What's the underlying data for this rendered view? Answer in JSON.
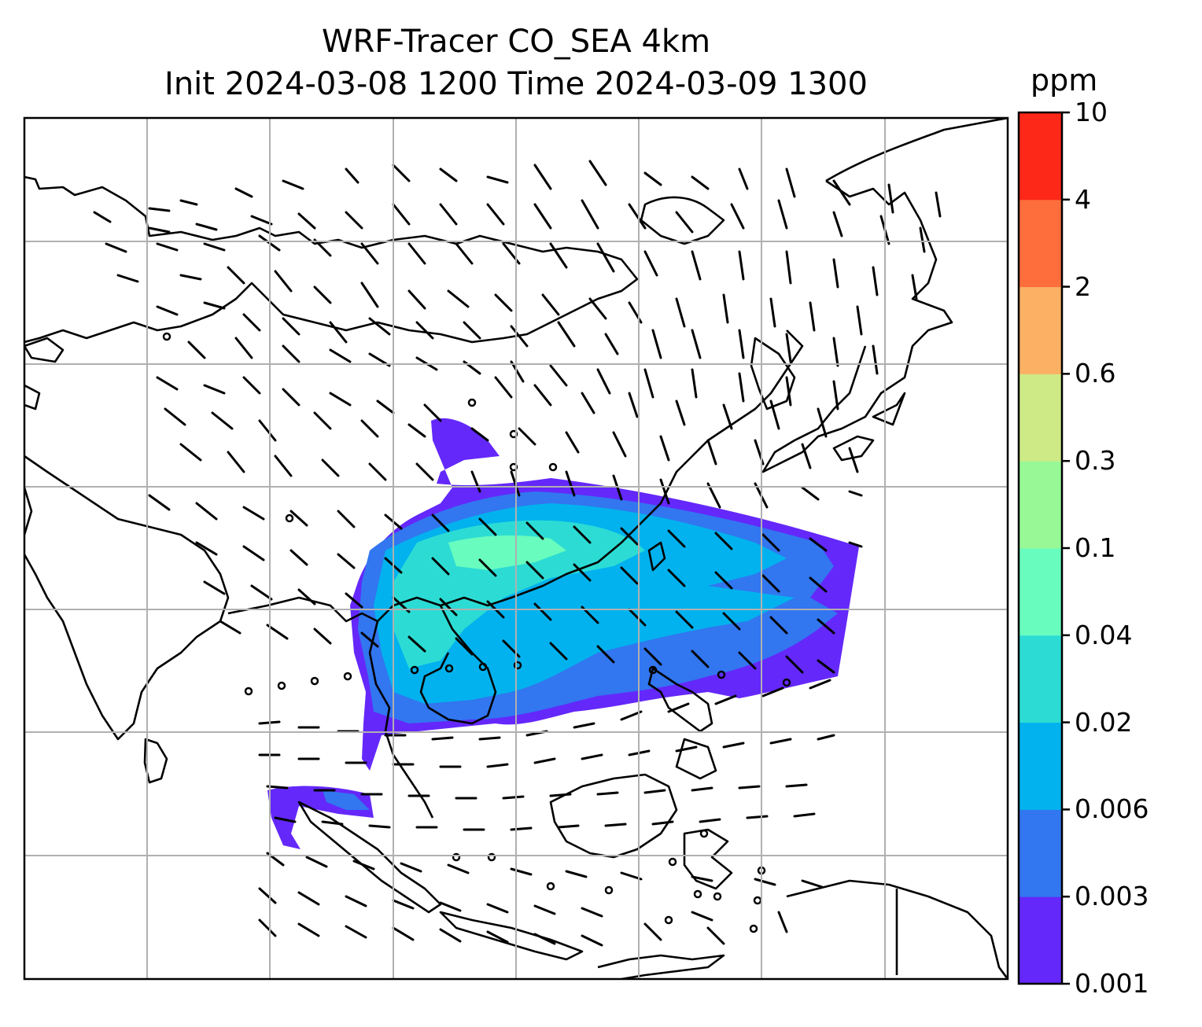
{
  "title_line1": "WRF-Tracer CO_SEA 4km",
  "title_line2": "Init 2024-03-08 1200 Time 2024-03-09 1300",
  "colorbar": {
    "unit": "ppm",
    "levels": [
      "0.001",
      "0.003",
      "0.006",
      "0.02",
      "0.04",
      "0.1",
      "0.3",
      "0.6",
      "2",
      "4",
      "10"
    ],
    "colors": [
      "#6428fa",
      "#3276f0",
      "#02b2ee",
      "#2cdcd4",
      "#68fcbe",
      "#98f896",
      "#ceea86",
      "#fcb064",
      "#fe6e3c",
      "#fe2818"
    ]
  },
  "map": {
    "gridlines": true,
    "features": [
      "coastlines",
      "country borders",
      "wind barbs",
      "CO tracer concentration"
    ]
  }
}
